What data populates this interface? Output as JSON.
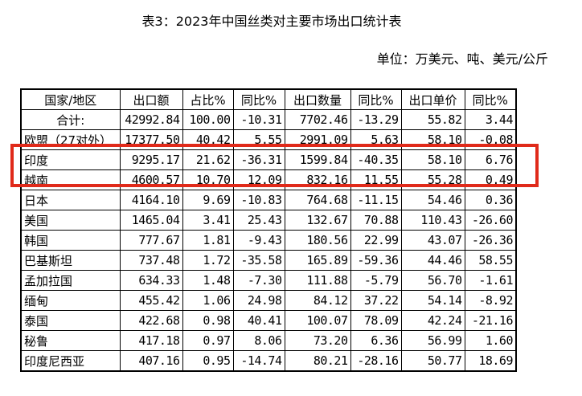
{
  "page": {
    "title": "表3：2023年中国丝类对主要市场出口统计表",
    "unit_note": "单位：万美元、吨、美元/公斤"
  },
  "table": {
    "columns": [
      "国家/地区",
      "出口额",
      "占比%",
      "同比%",
      "出口数量",
      "同比%",
      "出口单价",
      "同比%"
    ],
    "rows": [
      {
        "name": "合计:",
        "center_name": true,
        "highlighted": false,
        "values": [
          "42992.84",
          "100.00",
          "-10.31",
          "7702.46",
          "-13.29",
          "55.82",
          "3.44"
        ]
      },
      {
        "name": "欧盟（27对外）",
        "center_name": false,
        "highlighted": false,
        "values": [
          "17377.50",
          "40.42",
          "5.55",
          "2991.09",
          "5.63",
          "58.10",
          "-0.08"
        ]
      },
      {
        "name": "印度",
        "center_name": false,
        "highlighted": true,
        "values": [
          "9295.17",
          "21.62",
          "-36.31",
          "1599.84",
          "-40.35",
          "58.10",
          "6.76"
        ]
      },
      {
        "name": "越南",
        "center_name": false,
        "highlighted": true,
        "values": [
          "4600.57",
          "10.70",
          "12.09",
          "832.16",
          "11.55",
          "55.28",
          "0.49"
        ]
      },
      {
        "name": "日本",
        "center_name": false,
        "highlighted": false,
        "values": [
          "4164.10",
          "9.69",
          "-10.83",
          "764.68",
          "-11.15",
          "54.46",
          "0.36"
        ]
      },
      {
        "name": "美国",
        "center_name": false,
        "highlighted": false,
        "values": [
          "1465.04",
          "3.41",
          "25.43",
          "132.67",
          "70.88",
          "110.43",
          "-26.60"
        ]
      },
      {
        "name": "韩国",
        "center_name": false,
        "highlighted": false,
        "values": [
          "777.67",
          "1.81",
          "-9.43",
          "180.56",
          "22.99",
          "43.07",
          "-26.36"
        ]
      },
      {
        "name": "巴基斯坦",
        "center_name": false,
        "highlighted": false,
        "values": [
          "737.48",
          "1.72",
          "-35.58",
          "165.89",
          "-59.36",
          "44.46",
          "58.55"
        ]
      },
      {
        "name": "孟加拉国",
        "center_name": false,
        "highlighted": false,
        "values": [
          "634.33",
          "1.48",
          "-7.30",
          "111.88",
          "-5.79",
          "56.70",
          "-1.61"
        ]
      },
      {
        "name": "缅甸",
        "center_name": false,
        "highlighted": false,
        "values": [
          "455.42",
          "1.06",
          "24.98",
          "84.12",
          "37.22",
          "54.14",
          "-8.92"
        ]
      },
      {
        "name": "泰国",
        "center_name": false,
        "highlighted": false,
        "values": [
          "422.68",
          "0.98",
          "40.41",
          "100.07",
          "78.09",
          "42.24",
          "-21.16"
        ]
      },
      {
        "name": "秘鲁",
        "center_name": false,
        "highlighted": false,
        "values": [
          "417.18",
          "0.97",
          "8.06",
          "73.20",
          "6.36",
          "56.99",
          "1.60"
        ]
      },
      {
        "name": "印度尼西亚",
        "center_name": false,
        "highlighted": false,
        "values": [
          "407.16",
          "0.95",
          "-14.74",
          "80.21",
          "-28.16",
          "50.77",
          "18.69"
        ]
      }
    ]
  },
  "highlight": {
    "color": "#e02a1a",
    "highlighted_rows": [
      "印度",
      "越南"
    ]
  }
}
